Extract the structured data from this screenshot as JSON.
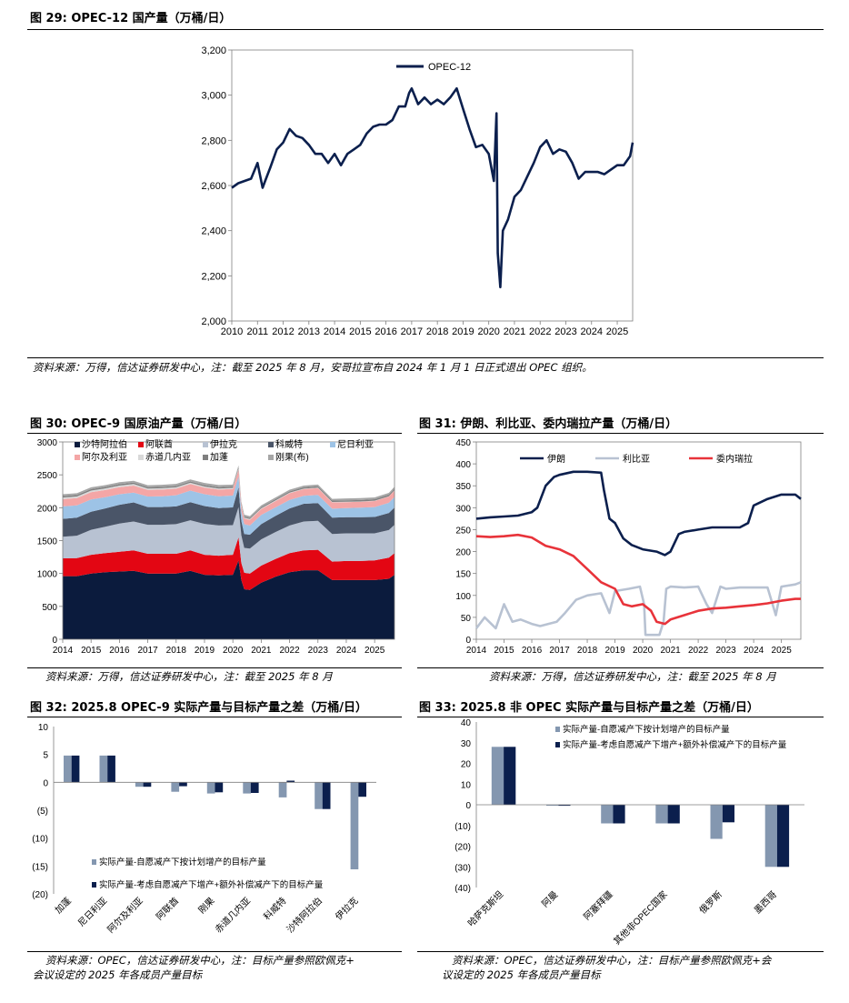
{
  "fig29": {
    "title": "图 29:  OPEC-12 国产量（万桶/日）",
    "source": "资料来源：万得，信达证券研发中心，注：截至 2025 年 8 月，安哥拉宣布自 2024 年 1 月 1 日正式退出 OPEC 组织。"
  },
  "fig30": {
    "title": "图 30:  OPEC-9 国原油产量（万桶/日）",
    "source": "资料来源：万得，信达证券研发中心，注：截至 2025 年 8 月"
  },
  "fig31": {
    "title": "图 31:  伊朗、利比亚、委内瑞拉产量（万桶/日）",
    "source": "资料来源：万得，信达证券研发中心，注：截至 2025 年 8 月"
  },
  "fig32": {
    "title": "图 32:  2025.8 OPEC-9 实际产量与目标产量之差（万桶/日）",
    "source_line1": "资料来源：OPEC，信达证券研发中心，注：目标产量参照欧佩克+",
    "source_line2": "会议设定的 2025 年各成员产量目标"
  },
  "fig33": {
    "title": "图 33:  2025.8 非 OPEC 实际产量与目标产量之差（万桶/日）",
    "source_line1": "资料来源：OPEC，信达证券研发中心，注：目标产量参照欧佩克+会",
    "source_line2": "议设定的 2025 年各成员产量目标"
  },
  "chart_data": [
    {
      "id": "fig29",
      "type": "line",
      "title": "OPEC-12 国产量（万桶/日）",
      "series": [
        {
          "name": "OPEC-12",
          "color": "#0b1f4d",
          "x": [
            2010.0,
            2010.25,
            2010.5,
            2010.75,
            2011.0,
            2011.2,
            2011.3,
            2011.5,
            2011.75,
            2012.0,
            2012.25,
            2012.5,
            2012.75,
            2013.0,
            2013.25,
            2013.5,
            2013.75,
            2014.0,
            2014.25,
            2014.5,
            2014.75,
            2015.0,
            2015.25,
            2015.5,
            2015.75,
            2016.0,
            2016.25,
            2016.5,
            2016.75,
            2016.9,
            2017.0,
            2017.25,
            2017.5,
            2017.75,
            2018.0,
            2018.25,
            2018.5,
            2018.75,
            2019.0,
            2019.25,
            2019.5,
            2019.75,
            2020.0,
            2020.2,
            2020.3,
            2020.35,
            2020.45,
            2020.55,
            2020.75,
            2021.0,
            2021.25,
            2021.5,
            2021.75,
            2022.0,
            2022.25,
            2022.5,
            2022.75,
            2023.0,
            2023.25,
            2023.5,
            2023.75,
            2024.0,
            2024.25,
            2024.5,
            2024.75,
            2025.0,
            2025.25,
            2025.5,
            2025.6
          ],
          "values": [
            2590,
            2610,
            2620,
            2630,
            2700,
            2590,
            2620,
            2680,
            2760,
            2790,
            2850,
            2820,
            2810,
            2780,
            2740,
            2740,
            2700,
            2740,
            2690,
            2740,
            2760,
            2780,
            2830,
            2860,
            2870,
            2870,
            2890,
            2950,
            2950,
            3010,
            3030,
            2960,
            2990,
            2960,
            2980,
            2960,
            2990,
            3030,
            2940,
            2850,
            2770,
            2780,
            2740,
            2620,
            2920,
            2300,
            2150,
            2400,
            2450,
            2550,
            2580,
            2640,
            2700,
            2770,
            2800,
            2740,
            2760,
            2750,
            2700,
            2630,
            2660,
            2660,
            2660,
            2650,
            2670,
            2690,
            2690,
            2730,
            2790
          ]
        }
      ],
      "xlim": [
        2010,
        2025.6
      ],
      "xticks": [
        2010,
        2011,
        2012,
        2013,
        2014,
        2015,
        2016,
        2017,
        2018,
        2019,
        2020,
        2021,
        2022,
        2023,
        2024,
        2025
      ],
      "ylim": [
        2000,
        3200
      ],
      "yticks": [
        "2,000",
        "2,200",
        "2,400",
        "2,600",
        "2,800",
        "3,000",
        "3,200"
      ],
      "legend": "top-left",
      "grid": false
    },
    {
      "id": "fig30",
      "type": "area",
      "title": "OPEC-9 国原油产量（万桶/日）",
      "stacked": true,
      "x": [
        2014.0,
        2014.5,
        2015.0,
        2015.5,
        2016.0,
        2016.5,
        2017.0,
        2017.5,
        2018.0,
        2018.5,
        2019.0,
        2019.5,
        2020.0,
        2020.2,
        2020.3,
        2020.4,
        2020.6,
        2021.0,
        2021.5,
        2022.0,
        2022.5,
        2023.0,
        2023.5,
        2024.0,
        2024.5,
        2025.0,
        2025.5,
        2025.7
      ],
      "series": [
        {
          "name": "沙特阿拉伯",
          "color": "#0b1b3d",
          "values": [
            960,
            960,
            1000,
            1020,
            1030,
            1040,
            1000,
            1000,
            1000,
            1040,
            980,
            970,
            980,
            1200,
            900,
            760,
            750,
            860,
            950,
            1020,
            1050,
            1050,
            900,
            900,
            900,
            900,
            920,
            980
          ]
        },
        {
          "name": "阿联酋",
          "color": "#e30613",
          "values": [
            270,
            275,
            285,
            290,
            300,
            310,
            300,
            300,
            300,
            310,
            305,
            300,
            305,
            350,
            260,
            250,
            250,
            260,
            270,
            290,
            300,
            310,
            280,
            290,
            290,
            300,
            320,
            330
          ]
        },
        {
          "name": "伊拉克",
          "color": "#b8c2d2",
          "values": [
            330,
            340,
            380,
            400,
            430,
            440,
            440,
            440,
            450,
            460,
            470,
            460,
            450,
            460,
            420,
            380,
            380,
            400,
            410,
            420,
            440,
            440,
            420,
            420,
            420,
            410,
            420,
            430
          ]
        },
        {
          "name": "科威特",
          "color": "#4a5568",
          "values": [
            270,
            275,
            275,
            280,
            285,
            290,
            270,
            270,
            270,
            275,
            270,
            265,
            270,
            300,
            220,
            210,
            210,
            230,
            245,
            260,
            270,
            270,
            250,
            245,
            245,
            250,
            260,
            265
          ]
        },
        {
          "name": "尼日利亚",
          "color": "#9dc3e6",
          "values": [
            190,
            185,
            185,
            170,
            160,
            150,
            160,
            165,
            170,
            175,
            180,
            180,
            180,
            170,
            150,
            150,
            140,
            140,
            130,
            130,
            120,
            125,
            135,
            140,
            145,
            150,
            155,
            160
          ]
        },
        {
          "name": "阿尔及利亚",
          "color": "#f4a6a6",
          "values": [
            110,
            110,
            110,
            108,
            108,
            107,
            100,
            100,
            100,
            100,
            100,
            100,
            100,
            100,
            85,
            85,
            85,
            90,
            95,
            100,
            102,
            103,
            96,
            90,
            90,
            92,
            95,
            97
          ]
        },
        {
          "name": "赤道几内亚",
          "color": "#d9d9d9",
          "values": [
            25,
            25,
            25,
            25,
            24,
            23,
            22,
            22,
            20,
            19,
            18,
            17,
            16,
            15,
            14,
            13,
            12,
            11,
            10,
            9,
            8,
            7,
            6,
            6,
            5,
            5,
            5,
            5
          ]
        },
        {
          "name": "加蓬",
          "color": "#7f7f7f",
          "values": [
            23,
            23,
            23,
            22,
            22,
            21,
            20,
            20,
            20,
            20,
            21,
            21,
            21,
            20,
            18,
            18,
            18,
            18,
            19,
            19,
            20,
            20,
            21,
            22,
            22,
            22,
            23,
            23
          ]
        },
        {
          "name": "刚果(布)",
          "color": "#a6a6a6",
          "values": [
            27,
            27,
            27,
            28,
            28,
            28,
            30,
            32,
            32,
            32,
            32,
            32,
            30,
            30,
            28,
            28,
            27,
            27,
            26,
            26,
            26,
            27,
            27,
            28,
            28,
            28,
            28,
            28
          ]
        }
      ],
      "xlim": [
        2014,
        2025.7
      ],
      "xticks": [
        2014,
        2015,
        2016,
        2017,
        2018,
        2019,
        2020,
        2021,
        2022,
        2023,
        2024,
        2025
      ],
      "ylim": [
        0,
        3000
      ],
      "yticks": [
        0,
        500,
        1000,
        1500,
        2000,
        2500,
        3000
      ],
      "legend": "top",
      "grid": false
    },
    {
      "id": "fig31",
      "type": "line",
      "title": "伊朗、利比亚、委内瑞拉产量（万桶/日）",
      "series": [
        {
          "name": "伊朗",
          "color": "#0b1f4d",
          "x": [
            2014.0,
            2014.5,
            2015.0,
            2015.5,
            2016.0,
            2016.2,
            2016.5,
            2016.8,
            2017.0,
            2017.5,
            2018.0,
            2018.5,
            2018.6,
            2018.8,
            2019.0,
            2019.3,
            2019.6,
            2020.0,
            2020.5,
            2020.8,
            2021.0,
            2021.3,
            2021.5,
            2022.0,
            2022.5,
            2023.0,
            2023.5,
            2023.8,
            2024.0,
            2024.5,
            2025.0,
            2025.5,
            2025.7
          ],
          "values": [
            275,
            278,
            280,
            282,
            290,
            300,
            350,
            370,
            375,
            382,
            382,
            380,
            340,
            275,
            265,
            230,
            215,
            205,
            200,
            192,
            200,
            240,
            245,
            250,
            255,
            255,
            255,
            265,
            305,
            320,
            330,
            330,
            320
          ]
        },
        {
          "name": "利比亚",
          "color": "#b8c2d2",
          "x": [
            2014.0,
            2014.3,
            2014.7,
            2015.0,
            2015.3,
            2015.6,
            2016.0,
            2016.3,
            2016.6,
            2016.9,
            2017.2,
            2017.6,
            2018.0,
            2018.5,
            2018.8,
            2019.0,
            2019.5,
            2019.9,
            2020.05,
            2020.1,
            2020.4,
            2020.6,
            2020.75,
            2020.85,
            2021.0,
            2021.5,
            2022.0,
            2022.3,
            2022.5,
            2022.8,
            2023.0,
            2023.5,
            2024.0,
            2024.5,
            2024.8,
            2025.0,
            2025.5,
            2025.7
          ],
          "values": [
            25,
            50,
            25,
            80,
            40,
            45,
            35,
            30,
            35,
            40,
            60,
            90,
            100,
            105,
            60,
            110,
            115,
            120,
            80,
            10,
            10,
            10,
            40,
            115,
            120,
            118,
            120,
            80,
            60,
            120,
            115,
            118,
            118,
            118,
            55,
            120,
            125,
            130
          ]
        },
        {
          "name": "委内瑞拉",
          "color": "#e8333a",
          "x": [
            2014.0,
            2014.5,
            2015.0,
            2015.5,
            2016.0,
            2016.5,
            2017.0,
            2017.5,
            2018.0,
            2018.5,
            2019.0,
            2019.3,
            2019.6,
            2020.0,
            2020.3,
            2020.5,
            2020.8,
            2021.0,
            2021.5,
            2022.0,
            2022.5,
            2023.0,
            2023.5,
            2024.0,
            2024.5,
            2025.0,
            2025.5,
            2025.7
          ],
          "values": [
            235,
            233,
            235,
            238,
            232,
            213,
            205,
            190,
            160,
            130,
            115,
            80,
            75,
            80,
            65,
            40,
            35,
            45,
            55,
            65,
            70,
            72,
            75,
            78,
            82,
            88,
            92,
            92
          ]
        }
      ],
      "xlim": [
        2014,
        2025.7
      ],
      "xticks": [
        2014,
        2015,
        2016,
        2017,
        2018,
        2019,
        2020,
        2021,
        2022,
        2023,
        2024,
        2025
      ],
      "ylim": [
        0,
        450
      ],
      "yticks": [
        0,
        50,
        100,
        150,
        200,
        250,
        300,
        350,
        400,
        450
      ],
      "legend": "top",
      "grid": false
    },
    {
      "id": "fig32",
      "type": "bar",
      "title": "2025.8 OPEC-9 实际产量与目标产量之差（万桶/日）",
      "categories": [
        "加蓬",
        "尼日利亚",
        "阿尔及利亚",
        "阿联酋",
        "刚果",
        "赤道几内亚",
        "科威特",
        "沙特阿拉伯",
        "伊拉克"
      ],
      "series": [
        {
          "name": "实际产量-自愿减产下按计划增产的目标产量",
          "color": "#8497b0",
          "values": [
            4.8,
            4.8,
            -0.8,
            -1.7,
            -2.0,
            -2.0,
            -2.7,
            -4.8,
            -15.6
          ]
        },
        {
          "name": "实际产量-考虑自愿减产下增产+额外补偿减产下的目标产量",
          "color": "#0b1f4d",
          "values": [
            4.8,
            4.8,
            -0.8,
            -0.7,
            -1.8,
            -1.9,
            0.3,
            -4.8,
            -2.6
          ]
        }
      ],
      "ylim": [
        -20,
        10
      ],
      "yticks": [
        "(20)",
        "(15)",
        "(10)",
        "(5)",
        "0",
        "5",
        "10"
      ],
      "legend": "bottom-left",
      "grid": false
    },
    {
      "id": "fig33",
      "type": "bar",
      "title": "2025.8 非 OPEC 实际产量与目标产量之差（万桶/日）",
      "categories": [
        "哈萨克斯坦",
        "阿曼",
        "阿塞拜疆",
        "其他非OPEC国家",
        "俄罗斯",
        "墨西哥"
      ],
      "series": [
        {
          "name": "实际产量-自愿减产下按计划增产的目标产量",
          "color": "#8497b0",
          "values": [
            28,
            -0.5,
            -9,
            -9,
            -16.5,
            -30
          ]
        },
        {
          "name": "实际产量-考虑自愿减产下增产+额外补偿减产下的目标产量",
          "color": "#0b1f4d",
          "values": [
            28,
            -0.5,
            -9,
            -9,
            -8.5,
            -30
          ]
        }
      ],
      "ylim": [
        -40,
        40
      ],
      "yticks": [
        "(40)",
        "(30)",
        "(20)",
        "(10)",
        "0",
        "10",
        "20",
        "30",
        "40"
      ],
      "legend": "top-right",
      "grid": false
    }
  ]
}
